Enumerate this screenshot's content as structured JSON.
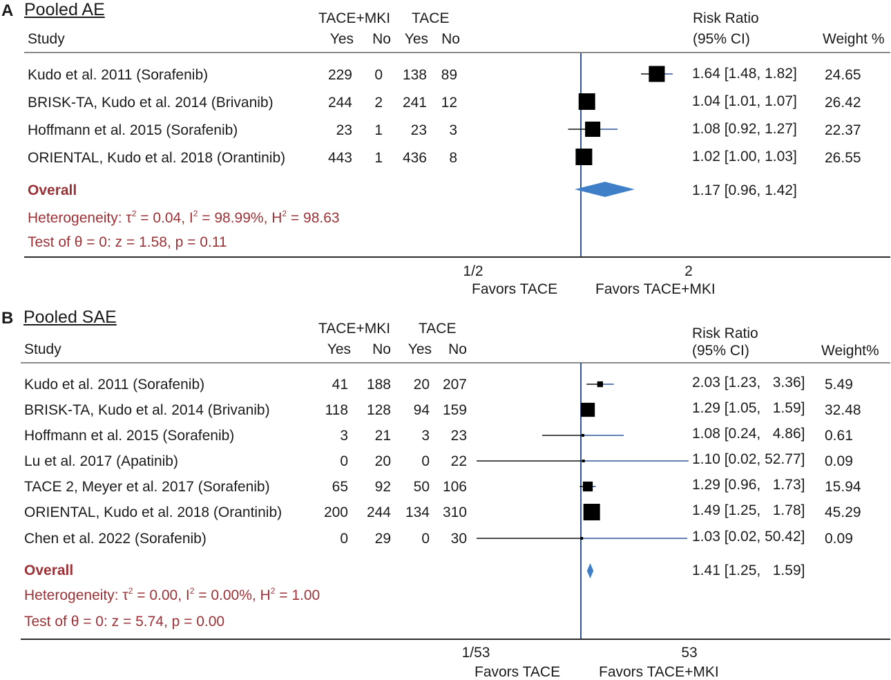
{
  "colors": {
    "accent_red": "#9b3237",
    "line_blue": "#2f5597",
    "diamond_blue": "#3f7fc7",
    "marker": "#000000",
    "rule_gray": "#8a8a8a",
    "axis_dark": "#2b2b2b"
  },
  "panels": [
    {
      "letter": "A",
      "title": "Pooled AE",
      "header": {
        "group1": "TACE+MKI",
        "group2": "TACE",
        "study": "Study",
        "yes1": "Yes",
        "no1": "No",
        "yes2": "Yes",
        "no2": "No",
        "rr_line1": "Risk Ratio",
        "rr_line2": "(95% CI)",
        "weight": "Weight %"
      },
      "overall_label": "Overall",
      "overall_ci_text": "1.17 [0.96, 1.42]",
      "heterogeneity": {
        "prefix": "Heterogeneity: τ",
        "tau_sup": "2",
        "mid1": " = 0.04, I",
        "i_sup": "2",
        "mid2": " = 98.99%, H",
        "h_sup": "2",
        "suffix": " = 98.63"
      },
      "test": "Test of θ = 0: z = 1.58, p = 0.11",
      "axis": {
        "tick_left": "1/2",
        "tick_right": "2",
        "favors_left": "Favors TACE",
        "favors_right": "Favors TACE+MKI"
      }
    },
    {
      "letter": "B",
      "title": "Pooled SAE",
      "header": {
        "group1": "TACE+MKI",
        "group2": "TACE",
        "study": "Study",
        "yes1": "Yes",
        "no1": "No",
        "yes2": "Yes",
        "no2": "No",
        "rr_line1": "Risk Ratio",
        "rr_line2": "(95% CI)",
        "weight": "Weight%"
      },
      "overall_label": "Overall",
      "overall_ci_text": "1.41 [1.25,   1.59]",
      "heterogeneity": {
        "prefix": "Heterogeneity: τ",
        "tau_sup": "2",
        "mid1": " = 0.00, I",
        "i_sup": "2",
        "mid2": " = 0.00%, H",
        "h_sup": "2",
        "suffix": " = 1.00"
      },
      "test": "Test of θ = 0: z = 5.74, p = 0.00",
      "axis": {
        "tick_left": "1/53",
        "tick_right": "53",
        "favors_left": "Favors TACE",
        "favors_right": "Favors TACE+MKI"
      }
    }
  ],
  "chart_data": [
    {
      "type": "forest",
      "title": "Pooled AE",
      "scale": "log",
      "xlim_ticks": [
        "1/2",
        "2"
      ],
      "null_value": 1,
      "studies": [
        {
          "study": "Kudo et al. 2011 (Sorafenib)",
          "tace_mki_yes": 229,
          "tace_mki_no": 0,
          "tace_yes": 138,
          "tace_no": 89,
          "rr": 1.64,
          "lo": 1.48,
          "hi": 1.82,
          "ci_text": "1.64 [1.48, 1.82]",
          "weight": "24.65"
        },
        {
          "study": "BRISK-TA, Kudo et al. 2014 (Brivanib)",
          "tace_mki_yes": 244,
          "tace_mki_no": 2,
          "tace_yes": 241,
          "tace_no": 12,
          "rr": 1.04,
          "lo": 1.01,
          "hi": 1.07,
          "ci_text": "1.04 [1.01, 1.07]",
          "weight": "26.42"
        },
        {
          "study": "Hoffmann et al. 2015 (Sorafenib)",
          "tace_mki_yes": 23,
          "tace_mki_no": 1,
          "tace_yes": 23,
          "tace_no": 3,
          "rr": 1.08,
          "lo": 0.92,
          "hi": 1.27,
          "ci_text": "1.08 [0.92, 1.27]",
          "weight": "22.37"
        },
        {
          "study": "ORIENTAL, Kudo et al. 2018 (Orantinib)",
          "tace_mki_yes": 443,
          "tace_mki_no": 1,
          "tace_yes": 436,
          "tace_no": 8,
          "rr": 1.02,
          "lo": 1.0,
          "hi": 1.03,
          "ci_text": "1.02 [1.00, 1.03]",
          "weight": "26.55"
        }
      ],
      "overall": {
        "rr": 1.17,
        "lo": 0.96,
        "hi": 1.42
      }
    },
    {
      "type": "forest",
      "title": "Pooled SAE",
      "scale": "log",
      "xlim_ticks": [
        "1/53",
        "53"
      ],
      "null_value": 1,
      "studies": [
        {
          "study": "Kudo et al. 2011 (Sorafenib)",
          "tace_mki_yes": 41,
          "tace_mki_no": 188,
          "tace_yes": 20,
          "tace_no": 207,
          "rr": 2.03,
          "lo": 1.23,
          "hi": 3.36,
          "ci_text": "2.03 [1.23,   3.36]",
          "weight": "5.49"
        },
        {
          "study": "BRISK-TA, Kudo et al. 2014 (Brivanib)",
          "tace_mki_yes": 118,
          "tace_mki_no": 128,
          "tace_yes": 94,
          "tace_no": 159,
          "rr": 1.29,
          "lo": 1.05,
          "hi": 1.59,
          "ci_text": "1.29 [1.05,   1.59]",
          "weight": "32.48"
        },
        {
          "study": "Hoffmann et al. 2015 (Sorafenib)",
          "tace_mki_yes": 3,
          "tace_mki_no": 21,
          "tace_yes": 3,
          "tace_no": 23,
          "rr": 1.08,
          "lo": 0.24,
          "hi": 4.86,
          "ci_text": "1.08 [0.24,   4.86]",
          "weight": "0.61"
        },
        {
          "study": "Lu et al. 2017 (Apatinib)",
          "tace_mki_yes": 0,
          "tace_mki_no": 20,
          "tace_yes": 0,
          "tace_no": 22,
          "rr": 1.1,
          "lo": 0.02,
          "hi": 52.77,
          "ci_text": "1.10 [0.02, 52.77]",
          "weight": "0.09"
        },
        {
          "study": "TACE 2, Meyer et al. 2017 (Sorafenib)",
          "tace_mki_yes": 65,
          "tace_mki_no": 92,
          "tace_yes": 50,
          "tace_no": 106,
          "rr": 1.29,
          "lo": 0.96,
          "hi": 1.73,
          "ci_text": "1.29 [0.96,   1.73]",
          "weight": "15.94"
        },
        {
          "study": "ORIENTAL, Kudo et al. 2018 (Orantinib)",
          "tace_mki_yes": 200,
          "tace_mki_no": 244,
          "tace_yes": 134,
          "tace_no": 310,
          "rr": 1.49,
          "lo": 1.25,
          "hi": 1.78,
          "ci_text": "1.49 [1.25,   1.78]",
          "weight": "45.29"
        },
        {
          "study": "Chen et al. 2022 (Sorafenib)",
          "tace_mki_yes": 0,
          "tace_mki_no": 29,
          "tace_yes": 0,
          "tace_no": 30,
          "rr": 1.03,
          "lo": 0.02,
          "hi": 50.42,
          "ci_text": "1.03 [0.02, 50.42]",
          "weight": "0.09"
        }
      ],
      "overall": {
        "rr": 1.41,
        "lo": 1.25,
        "hi": 1.59
      }
    }
  ]
}
